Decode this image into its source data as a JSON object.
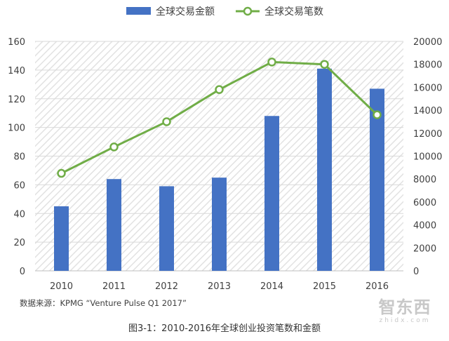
{
  "chart_data": {
    "type": "bar+line",
    "title": "图3-1：2010-2016年全球创业投资笔数和金额",
    "source": "数据来源：KPMG “Venture Pulse Q1 2017”",
    "categories": [
      "2010",
      "2011",
      "2012",
      "2013",
      "2014",
      "2015",
      "2016"
    ],
    "series": [
      {
        "name": "全球交易金额",
        "type": "bar",
        "axis": "left",
        "color": "#4472c4",
        "values": [
          45,
          64,
          59,
          65,
          108,
          141,
          127
        ]
      },
      {
        "name": "全球交易笔数",
        "type": "line",
        "axis": "right",
        "color": "#70ad47",
        "values": [
          8500,
          10800,
          13000,
          15800,
          18200,
          18000,
          13600
        ]
      }
    ],
    "left_axis": {
      "min": 0,
      "max": 160,
      "step": 20,
      "ticks": [
        "0",
        "20",
        "40",
        "60",
        "80",
        "100",
        "120",
        "140",
        "160"
      ]
    },
    "right_axis": {
      "min": 0,
      "max": 20000,
      "step": 2000,
      "ticks": [
        "0",
        "2000",
        "4000",
        "6000",
        "8000",
        "10000",
        "12000",
        "14000",
        "16000",
        "18000",
        "20000"
      ]
    },
    "legend_position": "top-center",
    "background_pattern": "diagonal-hatch",
    "watermark": {
      "main": "智东西",
      "sub": "zhidx.com"
    }
  }
}
